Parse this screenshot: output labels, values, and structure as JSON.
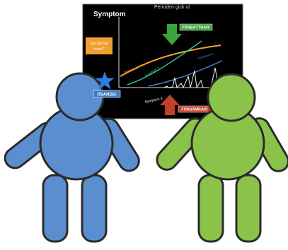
{
  "board": {
    "y_axis_title": "Symptom",
    "top_caption": "Perioden gick ut",
    "bg_color": "#000000"
  },
  "labels": {
    "var_allt_bra_line1": "Var allt bra",
    "var_allt_bra_line2": "innan?",
    "forbattrar": "FÖRBÄTTRAR!",
    "forsamrar": "FÖRSÄMRAR!",
    "osande": "ÖSANDE!",
    "symptom_1": "Symptom 1",
    "symptom_2": "Symptom 2",
    "symptom_3": "Symptom 3",
    "symptom_4": "Symptom 4"
  },
  "colors": {
    "person_blue": "#5b8ecf",
    "person_green": "#8bc34a",
    "outline": "#2b2b2b",
    "symptom_1": "#f0a030",
    "symptom_2": "#35c0a0",
    "symptom_3": "#ffffff",
    "symptom_4": "#4a7fd0",
    "star": "#2f7be0",
    "arrow_green": "#3aa33a",
    "arrow_red": "#c0402a",
    "label_orange": "#f0a030",
    "label_green": "#3aa33a",
    "label_red": "#c0402a",
    "label_blue": "#3a78c8"
  },
  "icons": [
    "star-icon",
    "arrow-down-icon",
    "arrow-up-icon"
  ]
}
